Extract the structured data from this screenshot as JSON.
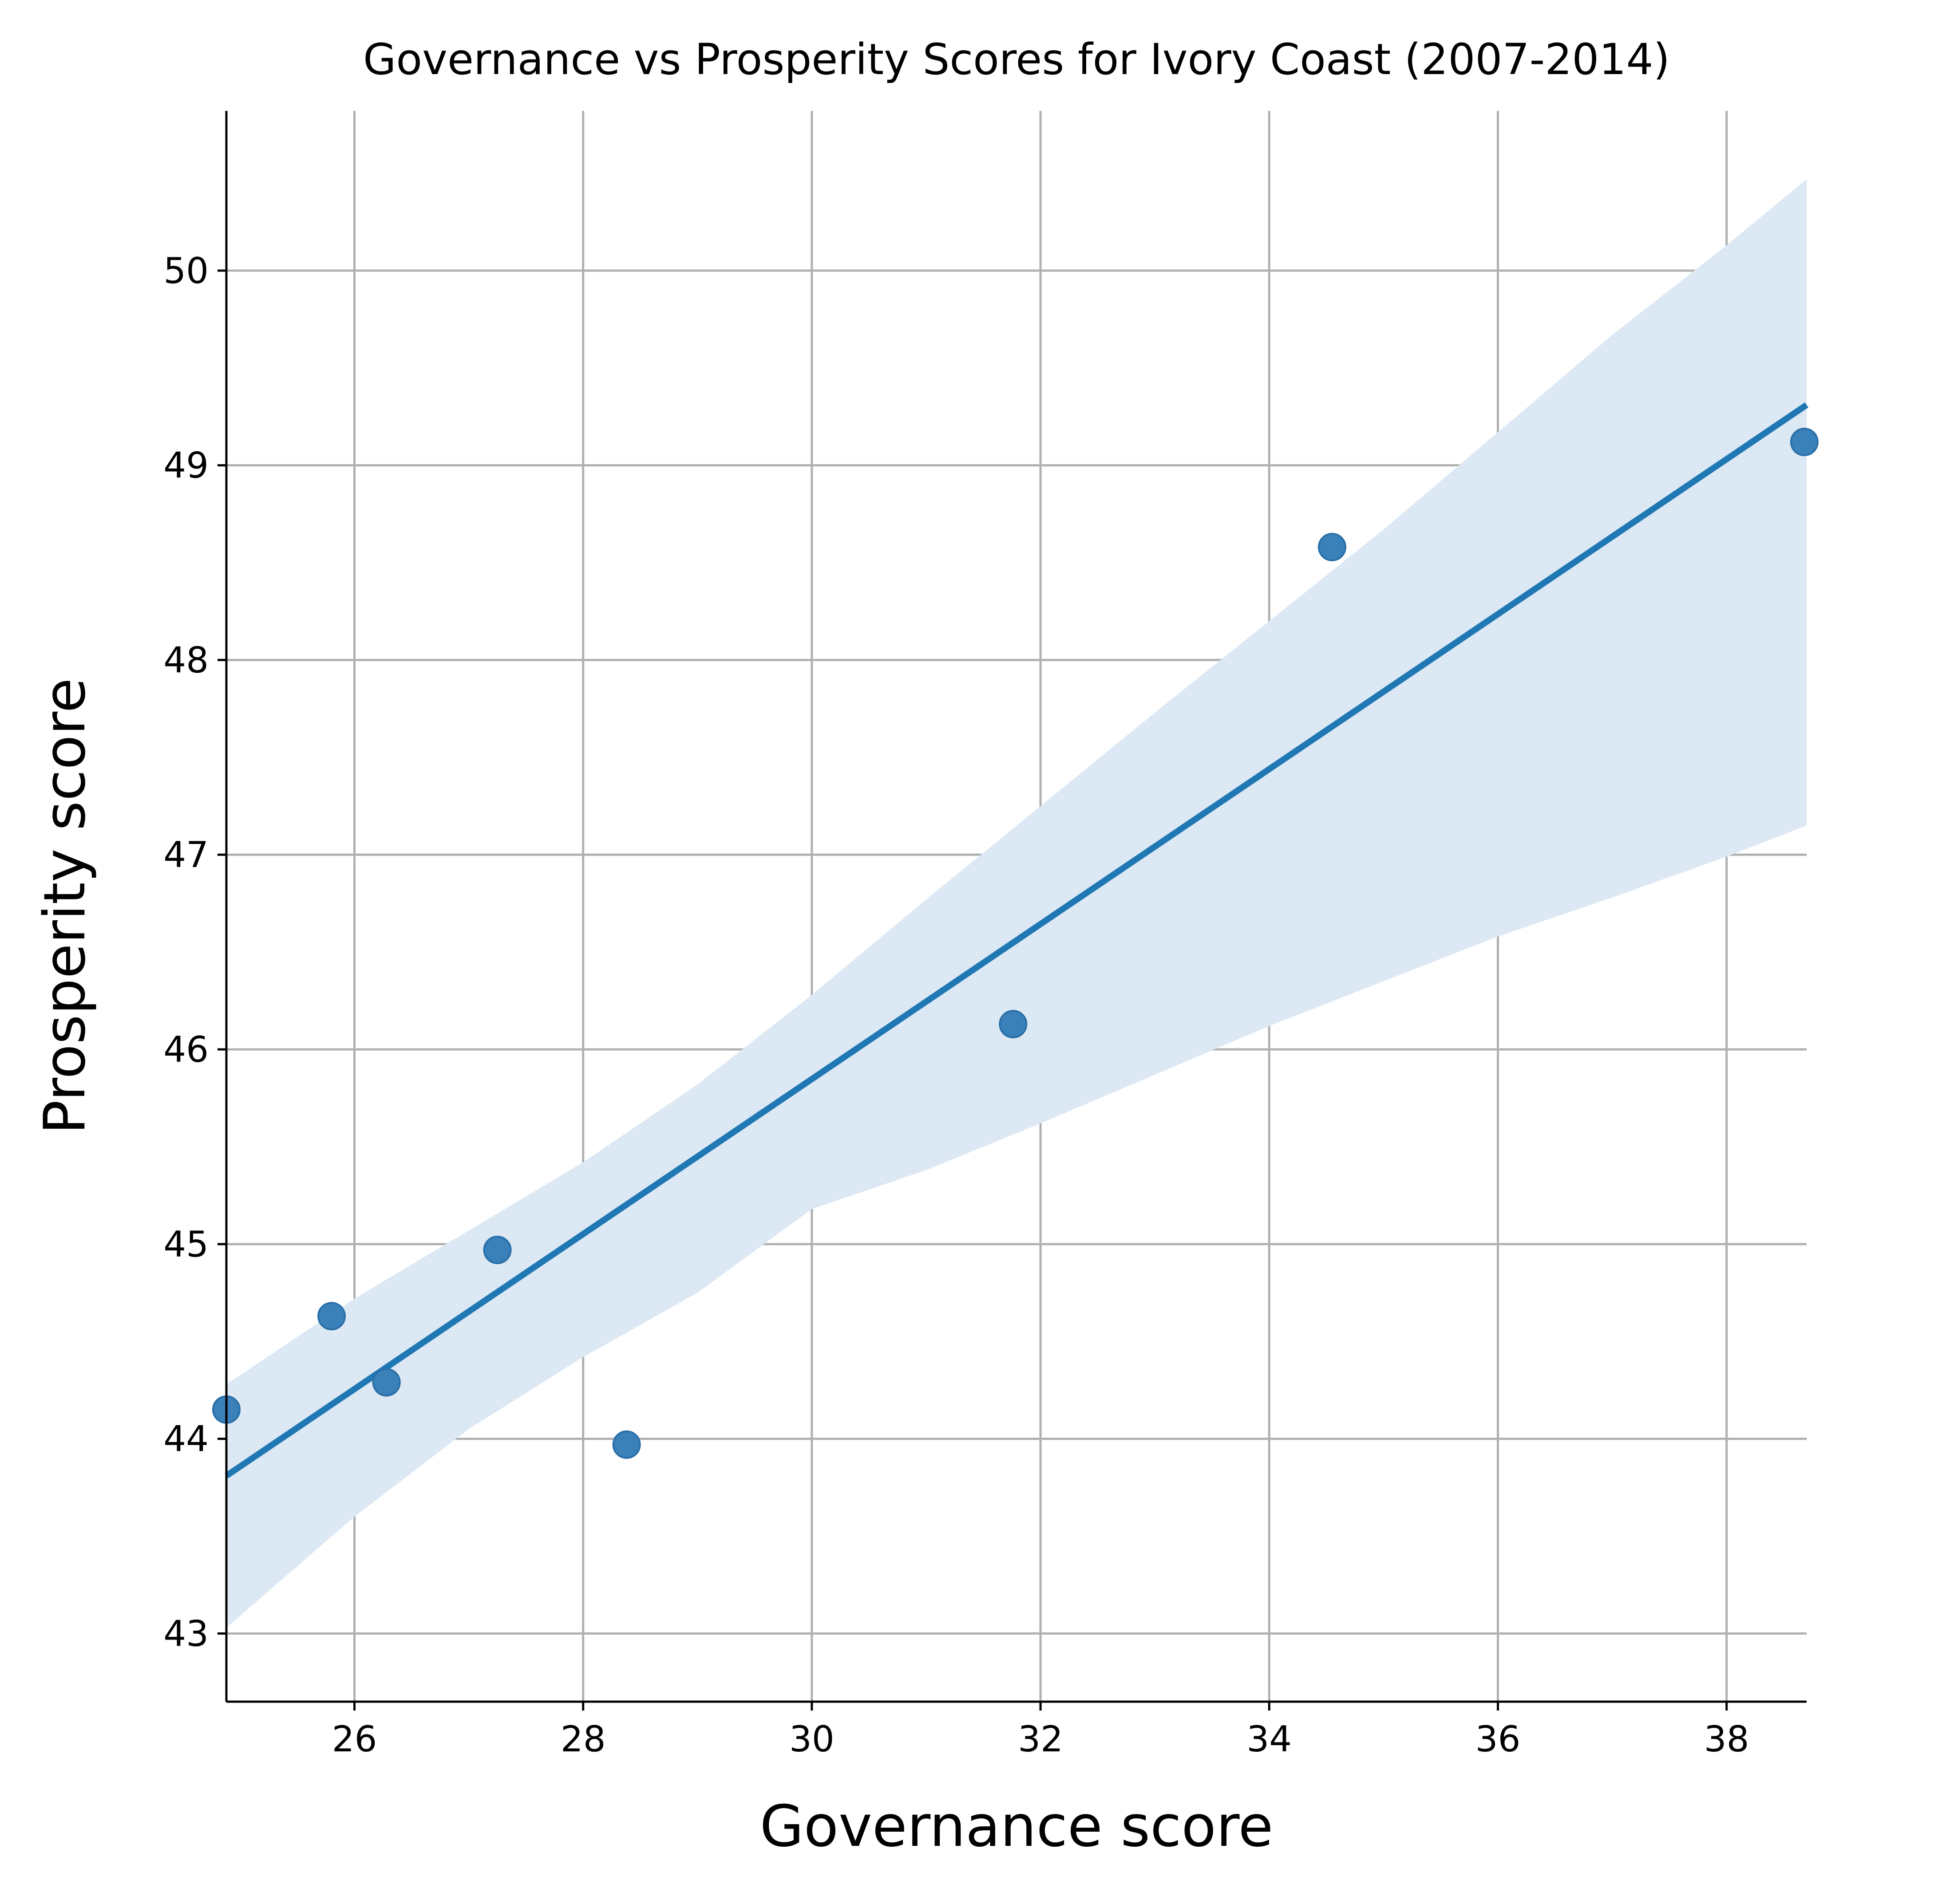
{
  "chart_data": {
    "type": "scatter",
    "title": "Governance vs Prosperity Scores for Ivory Coast (2007-2014)",
    "xlabel": "Governance score",
    "ylabel": "Prosperity score",
    "xlim": [
      24.88,
      38.7
    ],
    "ylim": [
      42.65,
      50.82
    ],
    "xticks": [
      26,
      28,
      30,
      32,
      34,
      36,
      38
    ],
    "yticks": [
      43,
      44,
      45,
      46,
      47,
      48,
      49,
      50
    ],
    "grid": true,
    "points": [
      {
        "x": 24.88,
        "y": 44.15
      },
      {
        "x": 25.8,
        "y": 44.63
      },
      {
        "x": 26.28,
        "y": 44.29
      },
      {
        "x": 27.25,
        "y": 44.97
      },
      {
        "x": 28.38,
        "y": 43.97
      },
      {
        "x": 31.76,
        "y": 46.13
      },
      {
        "x": 34.55,
        "y": 48.58
      },
      {
        "x": 38.68,
        "y": 49.12
      }
    ],
    "regression": {
      "x": [
        24.88,
        38.7
      ],
      "y": [
        43.81,
        49.31
      ]
    },
    "confidence_band": {
      "x": [
        24.88,
        26.0,
        27.0,
        28.0,
        29.0,
        30.0,
        31.0,
        32.0,
        33.0,
        34.0,
        35.0,
        36.0,
        37.0,
        38.0,
        38.7
      ],
      "upper": [
        44.28,
        44.72,
        45.07,
        45.42,
        45.82,
        46.28,
        46.77,
        47.25,
        47.73,
        48.2,
        48.67,
        49.17,
        49.67,
        50.13,
        50.47
      ],
      "lower": [
        43.03,
        43.6,
        44.05,
        44.42,
        44.75,
        45.18,
        45.38,
        45.62,
        45.87,
        46.12,
        46.35,
        46.58,
        46.78,
        46.99,
        47.15
      ]
    },
    "colors": {
      "point": "#3a80b9",
      "point_edge": "#2a6fa8",
      "line": "#1f77b4",
      "band": "#dce9f4"
    }
  }
}
